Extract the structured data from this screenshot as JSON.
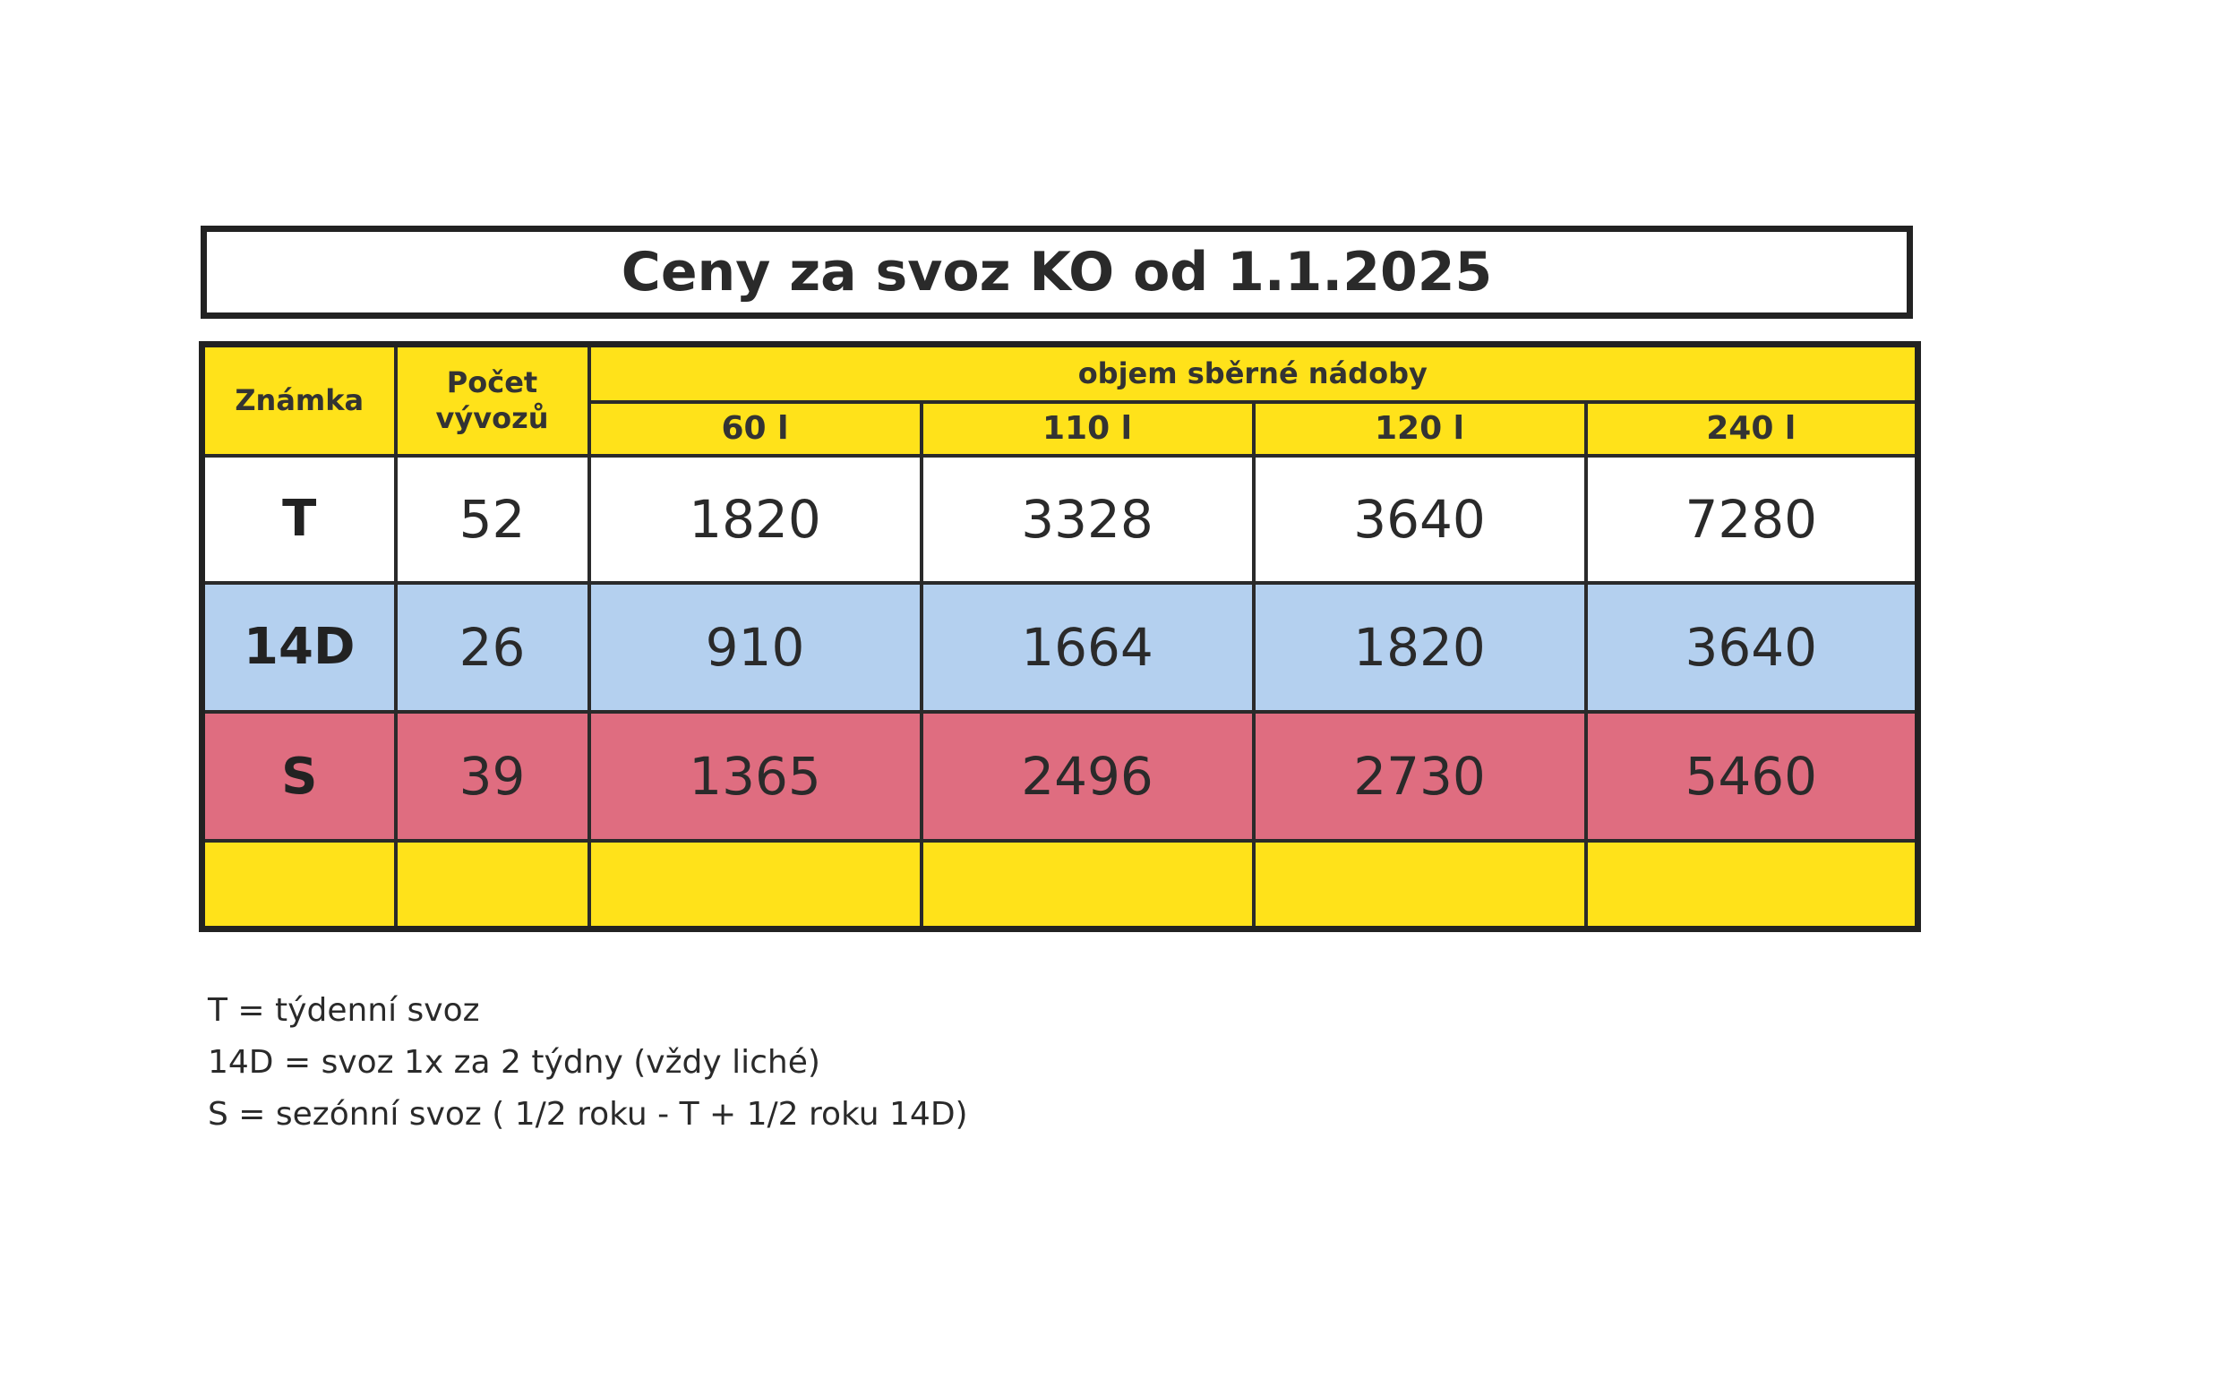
{
  "title": "Ceny za svoz KO od 1.1.2025",
  "table": {
    "header": {
      "znamka": "Známka",
      "pocet_line1": "Počet",
      "pocet_line2": "vývozů",
      "objem": "objem sběrné nádoby",
      "volumes": [
        "60 l",
        "110 l",
        "120 l",
        "240 l"
      ]
    },
    "rows": [
      {
        "label": "T",
        "count": "52",
        "prices": [
          "1820",
          "3328",
          "3640",
          "7280"
        ],
        "color": "#ffffff"
      },
      {
        "label": "14D",
        "count": "26",
        "prices": [
          "910",
          "1664",
          "1820",
          "3640"
        ],
        "color": "#b4d0ef"
      },
      {
        "label": "S",
        "count": "39",
        "prices": [
          "1365",
          "2496",
          "2730",
          "5460"
        ],
        "color": "#df6d80"
      }
    ],
    "header_color": "#ffe21a"
  },
  "legend": [
    "T = týdenní svoz",
    "14D = svoz 1x za 2 týdny (vždy liché)",
    "S = sezónní svoz ( 1/2 roku - T + 1/2 roku 14D)"
  ]
}
